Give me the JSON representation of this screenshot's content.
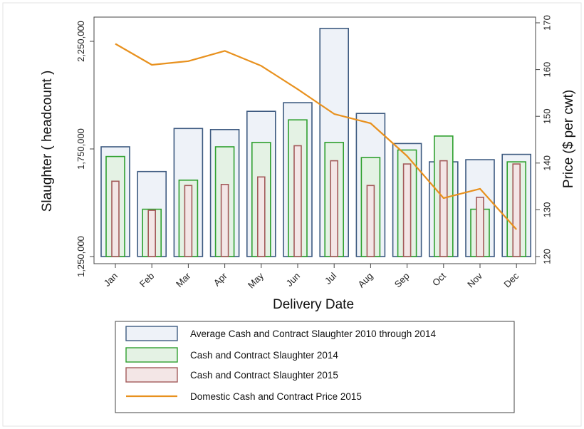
{
  "chart_data": {
    "type": "bar",
    "xlabel": "Delivery Date",
    "ylabel_left": "Slaughter ( headcount )",
    "ylabel_right": "Price ($ per cwt)",
    "categories": [
      "Jan",
      "Feb",
      "Mar",
      "Apr",
      "May",
      "Jun",
      "Jul",
      "Aug",
      "Sep",
      "Oct",
      "Nov",
      "Dec"
    ],
    "left_axis": {
      "ylim": [
        1250000,
        2300000
      ],
      "ticks": [
        1250000,
        1750000,
        2250000
      ],
      "tick_labels": [
        "1,250,000",
        "1,750,000",
        "2,250,000"
      ]
    },
    "right_axis": {
      "ylim": [
        118,
        172
      ],
      "ticks": [
        120,
        130,
        140,
        150,
        160,
        170
      ],
      "tick_labels": [
        "120",
        "130",
        "140",
        "150",
        "160",
        "170"
      ]
    },
    "series": [
      {
        "name": "Average Cash and Contract Slaughter 2010 through 2014",
        "axis": "left",
        "render": "bar-wide",
        "fill": "#eef2f8",
        "stroke": "#3d5a80",
        "values": [
          1760000,
          1645000,
          1845000,
          1840000,
          1925000,
          1965000,
          2310000,
          1915000,
          1775000,
          1690000,
          1700000,
          1725000
        ]
      },
      {
        "name": "Cash and Contract Slaughter 2014",
        "axis": "left",
        "render": "bar-mid",
        "fill": "#e4f2e4",
        "stroke": "#2fa02f",
        "values": [
          1715000,
          1470000,
          1605000,
          1760000,
          1780000,
          1885000,
          1780000,
          1710000,
          1745000,
          1810000,
          1470000,
          1690000
        ]
      },
      {
        "name": "Cash and Contract Slaughter 2015",
        "axis": "left",
        "render": "bar-narrow",
        "fill": "#f3e6e6",
        "stroke": "#a35a5a",
        "values": [
          1600000,
          1465000,
          1580000,
          1585000,
          1620000,
          1765000,
          1695000,
          1580000,
          1680000,
          1695000,
          1525000,
          1680000
        ]
      },
      {
        "name": "Domestic Cash and Contract Price 2015",
        "axis": "right",
        "render": "line",
        "stroke": "#e8911e",
        "values": [
          165.5,
          161.0,
          161.8,
          164.0,
          160.8,
          155.8,
          150.5,
          148.5,
          141.5,
          132.5,
          134.5,
          125.8
        ]
      }
    ],
    "legend_placement": "bottom",
    "grid": false
  }
}
